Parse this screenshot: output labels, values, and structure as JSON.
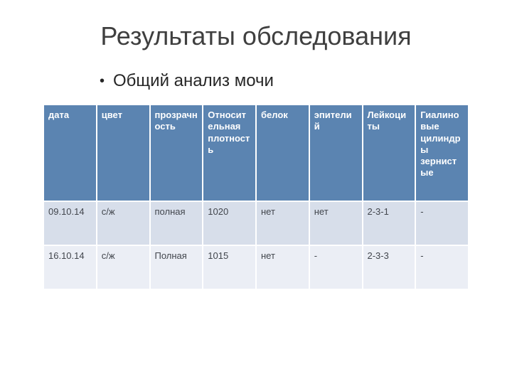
{
  "title": "Результаты обследования",
  "bullet": "Общий анализ мочи",
  "table": {
    "columns": [
      "дата",
      "цвет",
      "прозрачность",
      "Относительная плотность",
      "белок",
      "эпителий",
      "Лейкоциты",
      "Гиалиновые цилиндры зернистые"
    ],
    "rows": [
      [
        "09.10.14",
        "с/ж",
        "полная",
        "1020",
        "нет",
        "нет",
        "2-3-1",
        "-"
      ],
      [
        "16.10.14",
        "с/ж",
        "Полная",
        "1015",
        "нет",
        "-",
        "2-3-3",
        "-"
      ]
    ],
    "header_bg": "#5b84b1",
    "header_text_color": "#ffffff",
    "row_colors": [
      "#d7deea",
      "#ebeef5"
    ],
    "row_text_color": "#42464d",
    "header_fontsize": 13,
    "cell_fontsize": 13,
    "border_spacing": 2,
    "col_count": 8
  },
  "colors": {
    "background": "#ffffff",
    "title_color": "#3f3f3f",
    "text_color": "#262626"
  }
}
